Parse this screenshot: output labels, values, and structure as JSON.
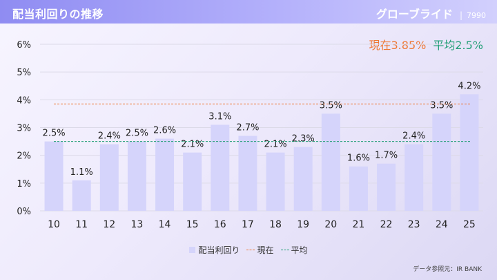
{
  "header": {
    "title": "配当利回りの推移",
    "company": "グローブライド",
    "separator": "|",
    "code": "7990"
  },
  "summary": {
    "current_label": "現在3.85%",
    "average_label": "平均2.5%"
  },
  "legend": {
    "bar_label": "配当利回り",
    "current_label": "現在",
    "average_label": "平均"
  },
  "source": "データ参照元：IR BANK",
  "colors": {
    "bar": "#d5d4fb",
    "current_line": "#ee7733",
    "average_line": "#1f9e75",
    "header": "#8f8cf2"
  },
  "chart_data": {
    "type": "bar",
    "categories": [
      "10",
      "11",
      "12",
      "13",
      "14",
      "15",
      "16",
      "17",
      "18",
      "19",
      "20",
      "21",
      "22",
      "23",
      "24",
      "25"
    ],
    "series": [
      {
        "name": "配当利回り",
        "values": [
          2.5,
          1.1,
          2.4,
          2.5,
          2.6,
          2.1,
          3.1,
          2.7,
          2.1,
          2.3,
          3.5,
          1.6,
          1.7,
          2.4,
          3.5,
          4.2
        ]
      }
    ],
    "data_labels": [
      "2.5%",
      "1.1%",
      "2.4%",
      "2.5%",
      "2.6%",
      "2.1%",
      "3.1%",
      "2.7%",
      "2.1%",
      "2.3%",
      "3.5%",
      "1.6%",
      "1.7%",
      "2.4%",
      "3.5%",
      "4.2%"
    ],
    "reference_lines": [
      {
        "name": "現在",
        "value": 3.85
      },
      {
        "name": "平均",
        "value": 2.5
      }
    ],
    "ylim": [
      0,
      6
    ],
    "yticks": [
      "0%",
      "1%",
      "2%",
      "3%",
      "4%",
      "5%",
      "6%"
    ],
    "grid": true,
    "legend_position": "bottom-center"
  }
}
